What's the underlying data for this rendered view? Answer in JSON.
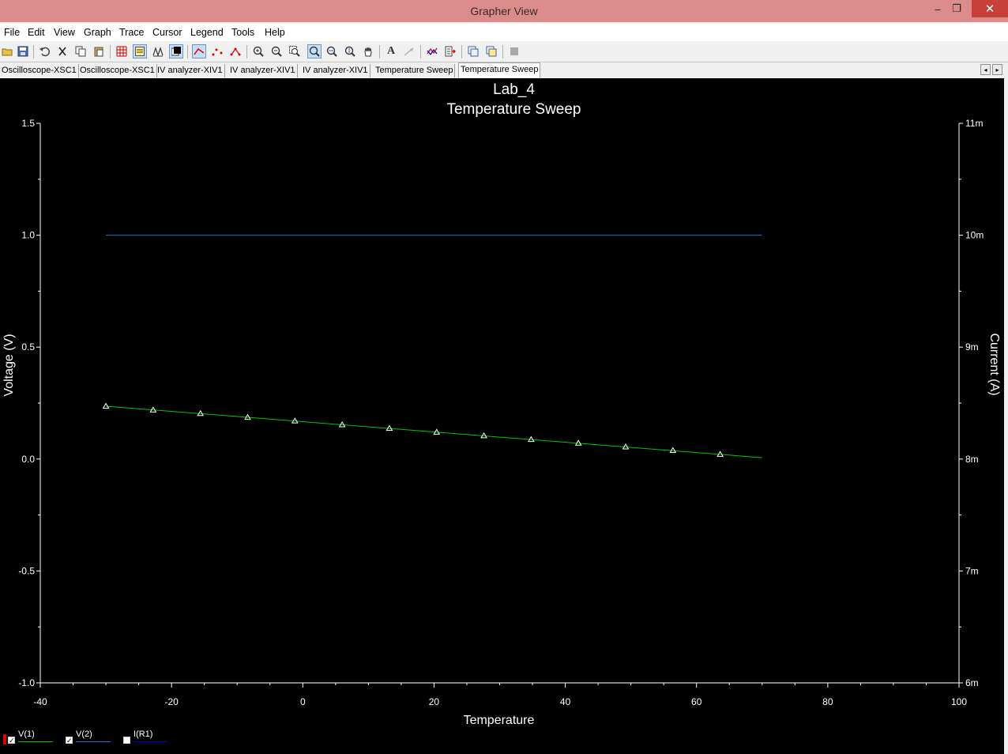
{
  "window": {
    "title": "Grapher View",
    "minimize_glyph": "–",
    "restore_glyph": "❐",
    "close_glyph": "✕"
  },
  "menu": [
    "File",
    "Edit",
    "View",
    "Graph",
    "Trace",
    "Cursor",
    "Legend",
    "Tools",
    "Help"
  ],
  "toolbar": {
    "icons": [
      "open-icon",
      "save-icon",
      "undo-icon",
      "cut-icon",
      "copy-icon",
      "paste-icon",
      "grid-icon",
      "legend-icon",
      "toggle-icon",
      "background-icon",
      "line-icon",
      "dots-icon",
      "line-dots-icon",
      "zoom-in-icon",
      "zoom-out-icon",
      "zoom-area-icon",
      "zoom-full-icon",
      "zoom-x-icon",
      "zoom-y-icon",
      "pan-icon",
      "text-icon",
      "arrow-icon",
      "overlay-icon",
      "export-icon",
      "copy-graph-icon",
      "paste-graph-icon",
      "stop-icon"
    ],
    "text_glyph": "A"
  },
  "tabs": [
    "Oscilloscope-XSC1",
    "Oscilloscope-XSC1",
    "IV analyzer-XIV1",
    "IV analyzer-XIV1",
    "IV analyzer-XIV1",
    "Temperature Sweep",
    "Temperature Sweep"
  ],
  "active_tab_index": 6,
  "tab_nav": [
    "◂",
    "▸"
  ],
  "legend": [
    {
      "name": "V(1)",
      "checked": true,
      "color": "#00c800"
    },
    {
      "name": "V(2)",
      "checked": true,
      "color": "#1e6fd0"
    },
    {
      "name": "I(R1)",
      "checked": false,
      "color": "#0000c8"
    }
  ],
  "chart_data": {
    "type": "line",
    "title": "Lab_4",
    "subtitle": "Temperature Sweep",
    "xlabel": "Temperature",
    "ylabel": "Voltage (V)",
    "y2label": "Current (A)",
    "xlim": [
      -40,
      100
    ],
    "ylim": [
      -1.0,
      1.5
    ],
    "y2lim": [
      6,
      11
    ],
    "x_ticks": [
      -40,
      -20,
      0,
      20,
      40,
      60,
      80,
      100
    ],
    "x_tick_labels": [
      "-40",
      "-20",
      "0",
      "20",
      "40",
      "60",
      "80",
      "100"
    ],
    "y_ticks": [
      -1.0,
      -0.5,
      0.0,
      0.5,
      1.0,
      1.5
    ],
    "y_tick_labels": [
      "-1.0",
      "-0.5",
      "0.0",
      "0.5",
      "1.0",
      "1.5"
    ],
    "y2_ticks": [
      6,
      7,
      8,
      9,
      10,
      11
    ],
    "y2_tick_labels": [
      "6m",
      "7m",
      "8m",
      "9m",
      "10m",
      "11m"
    ],
    "grid": false,
    "legend_position": "bottom-left",
    "series": [
      {
        "name": "V(1)",
        "color": "#00c800",
        "x": [
          -30,
          70
        ],
        "y": [
          0.236,
          0.006
        ],
        "markers_x": [
          -30,
          -22.8,
          -15.6,
          -8.4,
          -1.2,
          6,
          13.2,
          20.4,
          27.6,
          34.8,
          42,
          49.2,
          56.4,
          63.6
        ],
        "markers_y": [
          0.236,
          0.219,
          0.203,
          0.186,
          0.17,
          0.153,
          0.137,
          0.12,
          0.104,
          0.087,
          0.071,
          0.054,
          0.038,
          0.021
        ]
      },
      {
        "name": "V(2)",
        "color": "#1e6fd0",
        "x": [
          -30,
          70
        ],
        "y": [
          1.0,
          1.0
        ]
      }
    ]
  }
}
